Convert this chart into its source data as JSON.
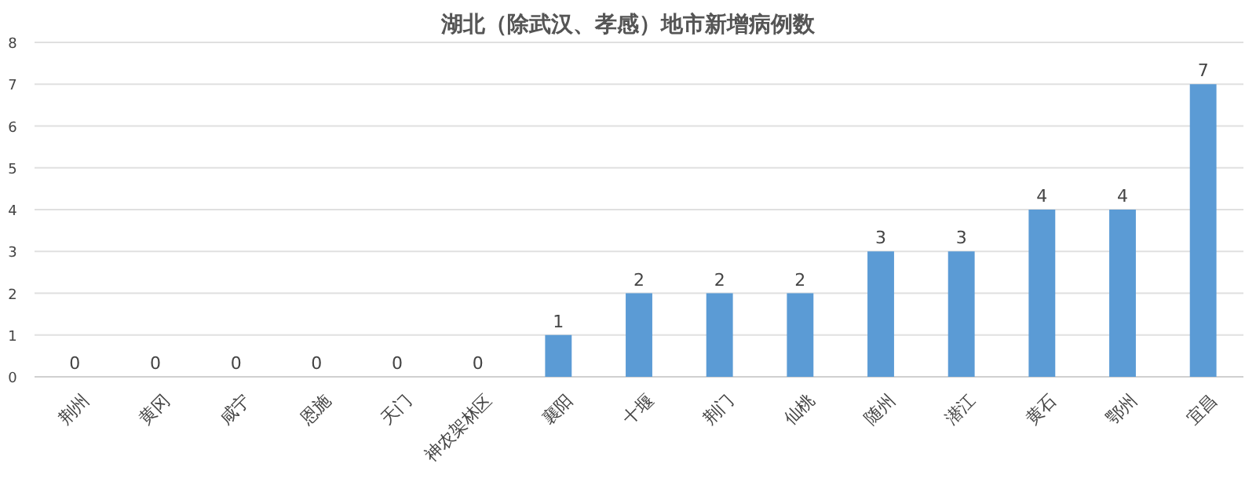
{
  "chart_data": {
    "type": "bar",
    "title": "湖北（除武汉、孝感）地市新增病例数",
    "categories": [
      "荆州",
      "黄冈",
      "咸宁",
      "恩施",
      "天门",
      "神农架林区",
      "襄阳",
      "十堰",
      "荆门",
      "仙桃",
      "随州",
      "潜江",
      "黄石",
      "鄂州",
      "宜昌"
    ],
    "values": [
      0,
      0,
      0,
      0,
      0,
      0,
      1,
      2,
      2,
      2,
      3,
      3,
      4,
      4,
      7
    ],
    "color": "#5b9bd5",
    "ylim": [
      0,
      8
    ],
    "yticks": [
      0,
      1,
      2,
      3,
      4,
      5,
      6,
      7,
      8
    ],
    "grid": "y",
    "data_labels": true
  }
}
